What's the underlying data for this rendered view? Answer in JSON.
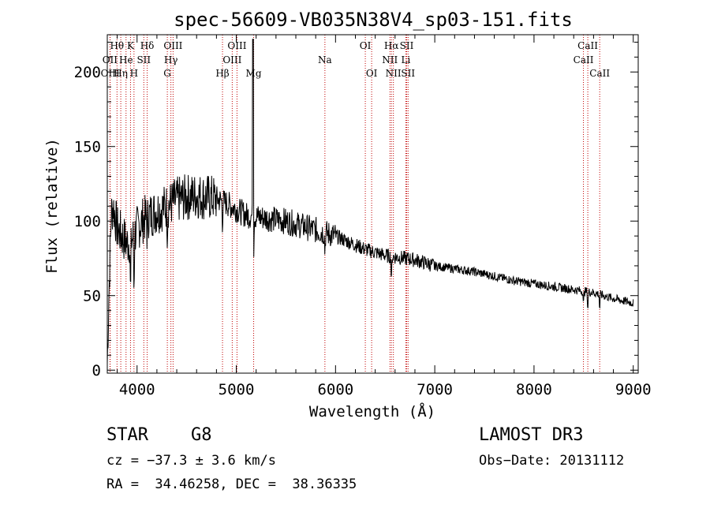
{
  "chart_data": {
    "type": "line",
    "title": "spec-56609-VB035N38V4_sp03-151.fits",
    "xlabel": "Wavelength (Å)",
    "ylabel": "Flux (relative)",
    "xlim": [
      3700,
      9050
    ],
    "ylim": [
      -2,
      225
    ],
    "xticks": [
      4000,
      5000,
      6000,
      7000,
      8000,
      9000
    ],
    "xtick_labels": [
      "4000",
      "5000",
      "6000",
      "7000",
      "8000",
      "9000"
    ],
    "yticks": [
      0,
      50,
      100,
      150,
      200
    ],
    "ytick_labels": [
      "0",
      "50",
      "100",
      "150",
      "200"
    ],
    "spectrum_envelope": {
      "x": [
        3700,
        3720,
        3740,
        3760,
        3800,
        3850,
        3900,
        3950,
        4000,
        4050,
        4100,
        4200,
        4300,
        4400,
        4500,
        4600,
        4700,
        4800,
        4900,
        5000,
        5100,
        5200,
        5300,
        5400,
        5500,
        5600,
        5700,
        5800,
        5900,
        6000,
        6100,
        6200,
        6300,
        6400,
        6500,
        6600,
        6700,
        6800,
        6900,
        7000,
        7200,
        7400,
        7600,
        7800,
        8000,
        8200,
        8400,
        8600,
        8800,
        9000
      ],
      "y": [
        5,
        60,
        105,
        110,
        95,
        90,
        85,
        88,
        95,
        100,
        103,
        107,
        110,
        114,
        116,
        117,
        116,
        115,
        112,
        108,
        104,
        103,
        102,
        101,
        100,
        98,
        96,
        94,
        92,
        90,
        87,
        84,
        81,
        79,
        77,
        76,
        75,
        74,
        72,
        70,
        68,
        66,
        63,
        60,
        58,
        56,
        54,
        52,
        48,
        45
      ]
    },
    "noise_seed": 7,
    "lines": [
      {
        "label": "Hθ",
        "x": 3798,
        "row": 0
      },
      {
        "label": "OII",
        "x": 3727,
        "row": 1
      },
      {
        "label": "OIII",
        "x": 3729,
        "row": 2
      },
      {
        "label": "Hη",
        "x": 3836,
        "row": 2
      },
      {
        "label": "He",
        "x": 3889,
        "row": 1
      },
      {
        "label": "K",
        "x": 3934,
        "row": 0
      },
      {
        "label": "SII",
        "x": 4068,
        "row": 1
      },
      {
        "label": "H",
        "x": 3969,
        "row": 2
      },
      {
        "label": "Hδ",
        "x": 4102,
        "row": 0
      },
      {
        "label": "OIII",
        "x": 4363,
        "row": 0
      },
      {
        "label": "Hγ",
        "x": 4341,
        "row": 1
      },
      {
        "label": "G",
        "x": 4305,
        "row": 2
      },
      {
        "label": "Hβ",
        "x": 4861,
        "row": 2
      },
      {
        "label": "OIII",
        "x": 5007,
        "row": 0
      },
      {
        "label": "OIII",
        "x": 4959,
        "row": 1
      },
      {
        "label": "Mg",
        "x": 5175,
        "row": 2
      },
      {
        "label": "Na",
        "x": 5893,
        "row": 1
      },
      {
        "label": "OI",
        "x": 6300,
        "row": 0
      },
      {
        "label": "OI",
        "x": 6364,
        "row": 2
      },
      {
        "label": "Hα",
        "x": 6563,
        "row": 0
      },
      {
        "label": "NII",
        "x": 6548,
        "row": 1
      },
      {
        "label": "NII",
        "x": 6583,
        "row": 2
      },
      {
        "label": "SII",
        "x": 6717,
        "row": 0
      },
      {
        "label": "Li",
        "x": 6708,
        "row": 1
      },
      {
        "label": "SII",
        "x": 6731,
        "row": 2
      },
      {
        "label": "CaII",
        "x": 8542,
        "row": 0
      },
      {
        "label": "CaII",
        "x": 8498,
        "row": 1
      },
      {
        "label": "CaII",
        "x": 8662,
        "row": 2
      }
    ]
  },
  "footer": {
    "object_class": "STAR",
    "subclass": "G8",
    "survey": "LAMOST DR3",
    "cz": "cz = −37.3 ± 3.6 km/s",
    "obs_date": "Obs−Date: 20131112",
    "coords": "RA =  34.46258, DEC =  38.36335"
  },
  "colors": {
    "line_marker": "#c00000",
    "spectrum": "#000000",
    "background": "#ffffff"
  }
}
